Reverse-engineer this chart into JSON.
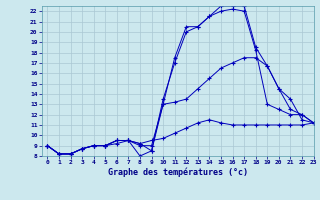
{
  "title": "Graphe des températures (°c)",
  "bg_color": "#cce8ee",
  "grid_color": "#aac8d4",
  "line_color": "#0000bb",
  "xlim": [
    -0.5,
    23
  ],
  "ylim": [
    8,
    22.5
  ],
  "xticks": [
    0,
    1,
    2,
    3,
    4,
    5,
    6,
    7,
    8,
    9,
    10,
    11,
    12,
    13,
    14,
    15,
    16,
    17,
    18,
    19,
    20,
    21,
    22,
    23
  ],
  "yticks": [
    8,
    9,
    10,
    11,
    12,
    13,
    14,
    15,
    16,
    17,
    18,
    19,
    20,
    21,
    22
  ],
  "line1_x": [
    0,
    1,
    2,
    3,
    4,
    5,
    6,
    7,
    8,
    9,
    10,
    11,
    12,
    13,
    14,
    15,
    16,
    17,
    18,
    19,
    20,
    21,
    22,
    23
  ],
  "line1_y": [
    9.0,
    8.2,
    8.2,
    8.7,
    9.0,
    9.0,
    9.2,
    9.5,
    9.2,
    9.5,
    9.7,
    10.2,
    10.7,
    11.2,
    11.5,
    11.2,
    11.0,
    11.0,
    11.0,
    11.0,
    11.0,
    11.0,
    11.0,
    11.2
  ],
  "line2_x": [
    0,
    1,
    2,
    3,
    4,
    5,
    6,
    7,
    8,
    9,
    10,
    11,
    12,
    13,
    14,
    15,
    16,
    17,
    18,
    19,
    20,
    21,
    22,
    23
  ],
  "line2_y": [
    9.0,
    8.2,
    8.2,
    8.7,
    9.0,
    9.0,
    9.5,
    9.5,
    8.0,
    8.5,
    13.0,
    17.5,
    20.5,
    20.5,
    21.5,
    22.0,
    22.2,
    22.0,
    18.2,
    13.0,
    12.5,
    12.0,
    12.0,
    11.2
  ],
  "line3_x": [
    0,
    1,
    2,
    3,
    4,
    5,
    6,
    7,
    8,
    9,
    10,
    11,
    12,
    13,
    14,
    15,
    16,
    17,
    18,
    19,
    20,
    21,
    22,
    23
  ],
  "line3_y": [
    9.0,
    8.2,
    8.2,
    8.7,
    9.0,
    9.0,
    9.5,
    9.5,
    9.0,
    9.0,
    13.0,
    13.2,
    13.5,
    14.5,
    15.5,
    16.5,
    17.0,
    17.5,
    17.5,
    16.7,
    14.5,
    13.5,
    11.5,
    11.2
  ],
  "line4_x": [
    0,
    1,
    2,
    3,
    4,
    5,
    6,
    7,
    8,
    9,
    10,
    11,
    12,
    13,
    14,
    15,
    16,
    17,
    18,
    19,
    20,
    21,
    22,
    23
  ],
  "line4_y": [
    9.0,
    8.2,
    8.2,
    8.7,
    9.0,
    9.0,
    9.5,
    9.5,
    9.2,
    8.5,
    13.5,
    17.0,
    20.0,
    20.5,
    21.5,
    22.5,
    22.5,
    22.5,
    18.5,
    16.7,
    14.5,
    12.5,
    12.0,
    11.2
  ]
}
